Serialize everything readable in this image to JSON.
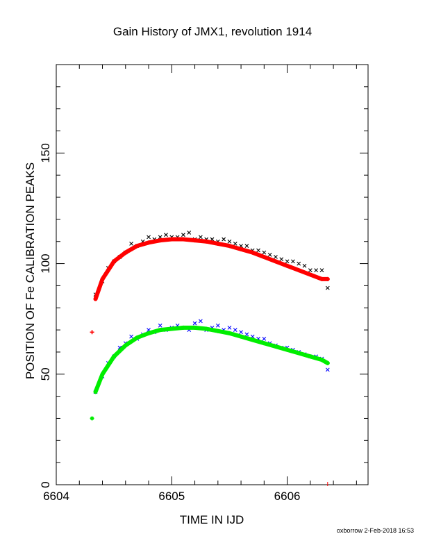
{
  "chart_data": {
    "type": "scatter",
    "title": "Gain History of JMX1, revolution 1914",
    "xlabel": "TIME IN IJD",
    "ylabel": "POSITION OF Fe CALIBRATION PEAKS",
    "xlim": [
      6604.0,
      6606.7
    ],
    "ylim": [
      0,
      190
    ],
    "x_ticks": [
      "6604",
      "6605",
      "6606"
    ],
    "y_ticks": [
      "0",
      "50",
      "100",
      "150"
    ],
    "grid": false,
    "legend": "none",
    "colors": {
      "upper_raw": "#000000",
      "upper_fit": "#ff0000",
      "lower_raw": "#0000ff",
      "lower_fit": "#00ee00"
    },
    "series": [
      {
        "marker": "x",
        "color": "#000000",
        "x": [
          6604.34,
          6604.4,
          6604.45,
          6604.5,
          6604.55,
          6604.6,
          6604.65,
          6604.7,
          6604.75,
          6604.8,
          6604.85,
          6604.9,
          6604.95,
          6605.0,
          6605.05,
          6605.1,
          6605.15,
          6605.2,
          6605.25,
          6605.3,
          6605.35,
          6605.4,
          6605.45,
          6605.5,
          6605.55,
          6605.6,
          6605.65,
          6605.7,
          6605.75,
          6605.8,
          6605.85,
          6605.9,
          6605.95,
          6606.0,
          6606.05,
          6606.1,
          6606.15,
          6606.2,
          6606.25,
          6606.3,
          6606.35
        ],
        "y": [
          86,
          92,
          98,
          101,
          103,
          105,
          109,
          108,
          110,
          112,
          111,
          112,
          113,
          112,
          112,
          113,
          114,
          111,
          112,
          111,
          111,
          110,
          111,
          110,
          109,
          108,
          108,
          106,
          106,
          105,
          104,
          103,
          102,
          101,
          101,
          100,
          99,
          97,
          97,
          97,
          89
        ]
      },
      {
        "marker": "+",
        "color": "#ff0000",
        "x": [
          6604.31,
          6604.34,
          6604.4,
          6604.5,
          6604.6,
          6604.7,
          6604.8,
          6604.9,
          6605.0,
          6605.1,
          6605.2,
          6605.3,
          6605.4,
          6605.5,
          6605.6,
          6605.7,
          6605.8,
          6605.9,
          6606.0,
          6606.1,
          6606.2,
          6606.3,
          6606.35
        ],
        "y": [
          69,
          84,
          93,
          101,
          105,
          108,
          109.5,
          110.5,
          111,
          111,
          110.5,
          110,
          109,
          108,
          106.5,
          105,
          103,
          101,
          99,
          97,
          95,
          93,
          93
        ]
      },
      {
        "marker": "x",
        "color": "#0000ff",
        "x": [
          6604.34,
          6604.4,
          6604.45,
          6604.5,
          6604.55,
          6604.6,
          6604.65,
          6604.7,
          6604.75,
          6604.8,
          6604.85,
          6604.9,
          6604.95,
          6605.0,
          6605.05,
          6605.1,
          6605.15,
          6605.2,
          6605.25,
          6605.3,
          6605.35,
          6605.4,
          6605.45,
          6605.5,
          6605.55,
          6605.6,
          6605.65,
          6605.7,
          6605.75,
          6605.8,
          6605.85,
          6605.9,
          6605.95,
          6606.0,
          6606.05,
          6606.1,
          6606.15,
          6606.2,
          6606.25,
          6606.3,
          6606.35
        ],
        "y": [
          42,
          49,
          55,
          58,
          62,
          64,
          67,
          66,
          68,
          70,
          69,
          72,
          70,
          71,
          72,
          71,
          70,
          73,
          74,
          70,
          71,
          72,
          70,
          71,
          70,
          69,
          68,
          67,
          66,
          66,
          64,
          63,
          62,
          62,
          61,
          60,
          59,
          58,
          58,
          57,
          52
        ]
      },
      {
        "marker": "*",
        "color": "#00ee00",
        "x": [
          6604.31,
          6604.34,
          6604.4,
          6604.5,
          6604.6,
          6604.7,
          6604.8,
          6604.9,
          6605.0,
          6605.1,
          6605.2,
          6605.3,
          6605.4,
          6605.5,
          6605.6,
          6605.7,
          6605.8,
          6605.9,
          6606.0,
          6606.1,
          6606.2,
          6606.3,
          6606.35
        ],
        "y": [
          30,
          42,
          50,
          58,
          63,
          66.5,
          68.5,
          70,
          70.5,
          71,
          71,
          70.5,
          69.5,
          68.5,
          67,
          65.5,
          64,
          62.5,
          61,
          59.5,
          58,
          56.5,
          55
        ]
      }
    ]
  },
  "footer": "oxborrow  2-Feb-2018 16:53"
}
